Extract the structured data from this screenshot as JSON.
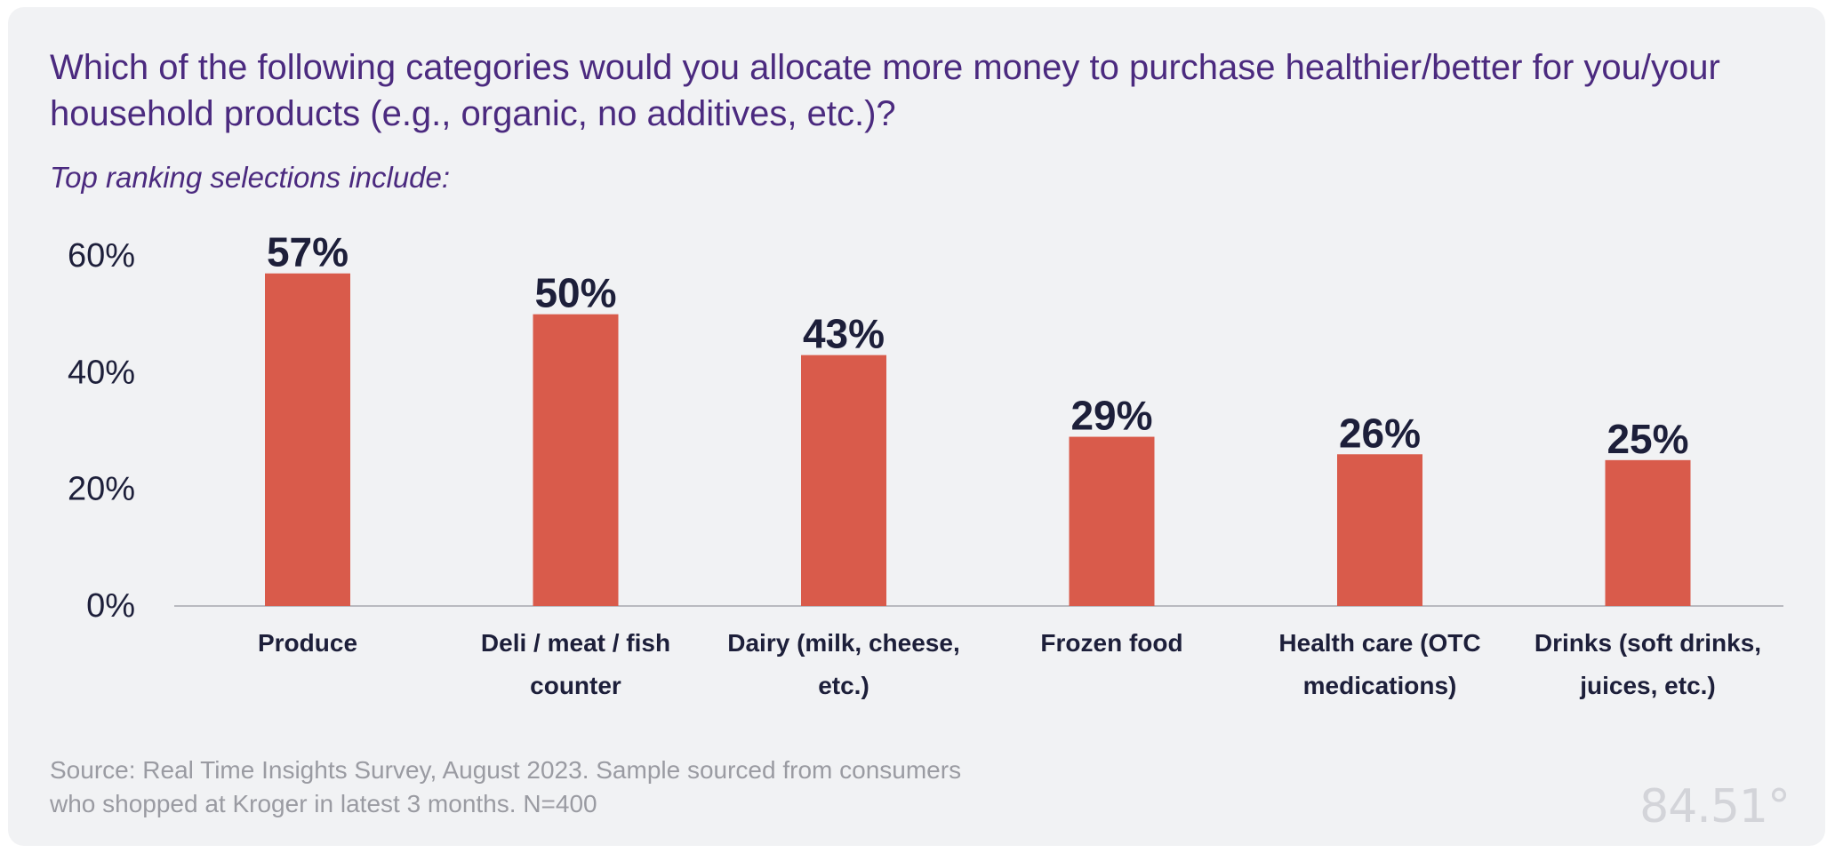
{
  "chart_data": {
    "type": "bar",
    "title": "Which of the following categories would you allocate more money to purchase healthier/better for you/your household products (e.g., organic, no additives, etc.)?",
    "subtitle": "Top ranking selections include:",
    "categories": [
      "Produce",
      "Deli / meat / fish counter",
      "Dairy (milk, cheese, etc.)",
      "Frozen food",
      "Health care (OTC medications)",
      "Drinks (soft drinks, juices, etc.)"
    ],
    "category_lines": [
      [
        "Produce"
      ],
      [
        "Deli / meat / fish",
        "counter"
      ],
      [
        "Dairy (milk, cheese,",
        "etc.)"
      ],
      [
        "Frozen food"
      ],
      [
        "Health care (OTC",
        "medications)"
      ],
      [
        "Drinks (soft drinks,",
        "juices, etc.)"
      ]
    ],
    "values": [
      57,
      50,
      43,
      29,
      26,
      25
    ],
    "value_labels": [
      "57%",
      "50%",
      "43%",
      "29%",
      "26%",
      "25%"
    ],
    "yticks": [
      0,
      20,
      40,
      60
    ],
    "ytick_labels": [
      "0%",
      "20%",
      "40%",
      "60%"
    ],
    "ylim": [
      0,
      60
    ],
    "xlabel": "",
    "ylabel": "",
    "grid": false,
    "legend": "none",
    "bar_color": "#d95b4b"
  },
  "footer": {
    "source": "Source: Real Time Insights Survey, August 2023. Sample sourced from consumers who shopped at Kroger in latest 3 months. N=400",
    "logo": "84.51°"
  }
}
